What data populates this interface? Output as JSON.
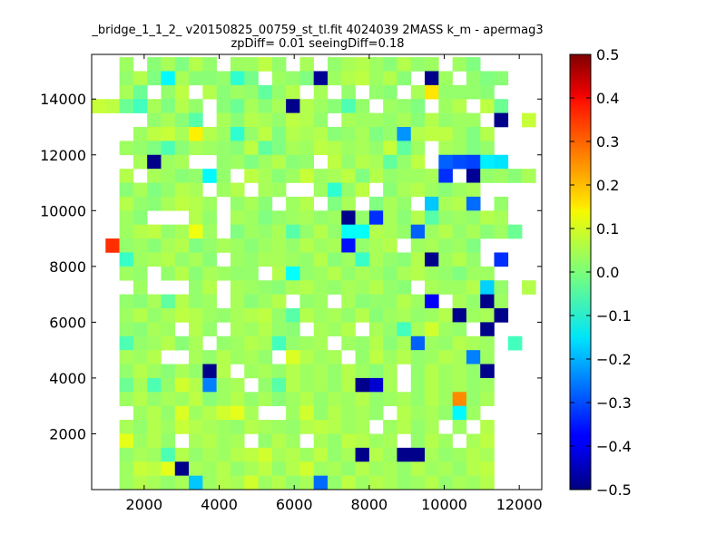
{
  "chart_data": {
    "type": "heatmap",
    "title_line1": "_bridge_1_1_2_ v20150825_00759_st_tl.fit 4024039 2MASS k_m - apermag3",
    "title_line2": "zpDiff= 0.01 seeingDiff=0.18",
    "xlim": [
      600,
      12600
    ],
    "ylim": [
      0,
      15600
    ],
    "x_ticks": [
      2000,
      4000,
      6000,
      8000,
      10000,
      12000
    ],
    "y_ticks": [
      2000,
      4000,
      6000,
      8000,
      10000,
      12000,
      14000
    ],
    "x_tick_labels": [
      "2000",
      "4000",
      "6000",
      "8000",
      "10000",
      "12000"
    ],
    "y_tick_labels": [
      "2000",
      "4000",
      "6000",
      "8000",
      "10000",
      "12000",
      "14000"
    ],
    "colorbar": {
      "vmin": -0.5,
      "vmax": 0.5,
      "colormap": "jet",
      "ticks": [
        0.5,
        0.4,
        0.3,
        0.2,
        0.1,
        0.0,
        -0.1,
        -0.2,
        -0.3,
        -0.4,
        -0.5
      ],
      "tick_labels": [
        "0.5",
        "0.4",
        "0.3",
        "0.2",
        "0.1",
        "0.0",
        "−0.1",
        "−0.2",
        "−0.3",
        "−0.4",
        "−0.5"
      ]
    },
    "grid": {
      "x0": 600,
      "dx": 370,
      "y0": 0,
      "dy": 500,
      "cols": 32,
      "rows": 31,
      "rows_top_to_bottom": [
        ". . 0.03 . 0.01 0.04 0 0.05 0.02 . 0.03 0.03 0.06 0.02 . 0.04 . 0.02 0.04 0.05 0.03 0.01 0.05 0.02 0.03 . 0.03 0 . . . .",
        ". . 0.02 0.05 0 -0.13 0.04 0.01 0.01 0.02 -0.08 -0.01 . 0.03 0.02 0 -0.48 0.03 0.05 0.06 0.03 0.05 0.01 . -0.49 0.03 . 0.02 0 0.01 . .",
        ". . 0.04 -0.02 . 0.02 0.06 . 0.05 0.01 0.03 0.02 -0.03 0.02 0.05 . 0.04 . 0.02 . 0.02 0.01 . 0.04 0.15 0.02 0.02 0.02 0.01 . . .",
        "0.07 0.06 -0.02 -0.06 0.04 0 0.05 0.02 . 0.01 -0.02 0.04 0.01 0.04 -0.49 0.05 0.03 0.01 -0.05 0.02 . 0.03 0.02 0 . 0.03 0.05 . 0.06 -0.02 . .",
        ". . . . 0.02 0.04 0.01 -0.04 . 0.04 0.01 0.05 0.04 0.02 0.06 0.05 0.02 . 0.04 0.03 0.03 0.02 0.04 0.01 0.05 0.02 0.03 0.03 . -0.49 . 0.07",
        ". . . 0.03 0.06 0.07 0.04 0.14 0.05 0.03 -0.08 0.02 0.06 0 0.05 0.04 0.05 0.01 0.02 0.04 0 0.02 -0.23 0.05 0.06 0.06 0.03 0 0.05 . . .",
        ". . 0.03 0.02 0 -0.05 0.01 0.04 0.03 0.02 0.01 0.06 -0.03 0 0.04 0.03 0.06 0.05 0.03 0.04 0.02 0.07 -0.03 0.03 . 0.04 0.03 0 0.02 . . .",
        ". . . 0.04 -0.49 0.03 0.04 . . 0.02 0.03 0 0.03 0.05 0.01 0.02 . 0.06 0.02 0.05 0.04 -0.03 0.02 0.06 . -0.28 -0.3 -0.31 -0.14 -0.15 . .",
        ". . 0.05 . 0.04 0.03 0.01 0.02 -0.13 0.02 . 0.06 0.04 0.01 0.03 0.07 0.03 0.04 0.06 0 0.05 0.02 0.03 0.03 0.04 -0.33 . -0.48 0.02 0.03 0.01 0.04",
        ". . 0.01 0.04 0 0.02 0.05 0.04 . 0.03 0.05 . 0.04 0.03 . . 0.03 -0.08 0.02 0.06 . 0.01 0.04 0.05 0.03 0.01 0.03 0.04 . . . .",
        ". . 0.05 0.02 0.01 0.04 0.06 0.05 0.03 . 0.02 0.04 0.01 . 0.03 0.05 . 0 0.04 . 0 0.04 0.02 . -0.18 0.04 0.05 -0.27 . 0.02 . .",
        ". . 0.03 0.01 . . . 0.05 0.02 . 0.04 0.03 0 0.02 0.03 0.04 0.02 0.03 -0.49 0.02 -0.33 0.04 0.01 0.05 -0.04 0.02 0.03 0.02 0.05 0.04 . .",
        ". . 0.03 0.05 0.06 0.02 0.04 0.11 0.03 . 0 0.03 0.02 0.04 -0.04 0.02 0.05 0.02 -0.12 -0.12 0.05 0.04 0.02 -0.28 0.03 0.05 0.02 0.04 0.01 0.03 -0.02 .",
        ". 0.33 0.02 0.03 0.01 0.04 0.05 0 0.02 0.04 0.03 0.01 0.03 0.04 0.02 0.05 0.03 0.04 -0.36 0.02 0.04 0.05 . 0.03 0.04 0.02 0.03 0 . . . .",
        ". . -0.07 0.03 0.04 0.05 0.02 0.04 0.01 . 0.03 0.02 0.04 0.04 0.03 0.02 0.05 0.01 0.03 -0.07 0.04 0.02 0.01 0.05 -0.49 0.03 0.05 0.02 . -0.33 . .",
        ". . 0.03 0.02 . 0.02 0.05 0.01 0.04 0.03 0.02 0.02 . 0.05 -0.12 0.02 0.03 0.05 0.02 0.04 0.03 0.01 0.04 0.05 0.03 0.02 0 0.03 0.03 . . .",
        ". . . 0.03 . . . 0.02 0.05 . 0.04 0.03 0.02 0.01 0.04 0.05 0.03 0.02 0.04 0.03 0.05 0.02 0.01 . 0.04 0.03 0.03 0.05 -0.17 0.02 . 0.05",
        ". . 0.02 0.01 0.04 -0.03 0.05 0.02 0.03 . 0.04 0.01 0.03 0.05 . 0.02 0.03 . 0.04 0.01 0.02 0.02 0.05 0.03 -0.38 . 0.04 0.02 -0.49 0.03 . .",
        ". . 0.03 0.05 0.02 0.04 0.06 0.05 0.03 0.02 0.04 0.05 0.06 0.02 -0.04 0.05 0.03 0.04 0.02 0.05 0.01 0.03 0.04 0.02 0.03 0.05 -0.49 0.03 0.04 -0.49 . .",
        ". . 0.02 0.01 0.04 0.03 . 0.05 0.02 . 0.04 0.03 0.05 0.02 0.01 . 0.04 0.03 0.05 . 0.04 0.02 -0.06 0.04 0.08 0.03 0.02 . -0.49 . . .",
        ". . -0.05 0.02 0.03 0.05 0.01 0.04 . 0.02 0.03 0.05 0.04 -0.06 0.02 0.03 0.04 . 0.03 0.02 0.05 0.01 0.04 -0.28 0.03 0.02 0.05 0.04 0.03 . -0.06 .",
        ". . 0.04 0.03 0.05 . . 0.04 0.02 0.05 0.03 0.04 0.02 . 0.09 0.05 0.03 0.04 . 0.02 0.06 0.03 0.05 0.02 0.03 0.05 0.04 -0.25 0.03 . . .",
        ". . 0.02 0.05 0.03 0.01 0.04 0.02 -0.49 0.05 . 0.03 0.04 0.02 0.05 0.03 0.04 0.02 0.05 0.03 0.01 0.04 . 0.02 0.05 0.03 0.04 0.02 -0.49 . . .",
        ". . -0.02 0.04 -0.05 0.02 0.08 0.05 -0.25 0.03 0.04 . 0.02 -0.04 0.05 0.03 0.04 0.02 0.05 -0.49 -0.42 0.04 . 0.02 0.05 0.03 0.04 0.02 0.03 . . .",
        ". . 0.03 0.05 0.02 0.04 0.03 0.06 0.01 0.03 0.05 0.02 0.04 0.01 0.03 0.05 0.02 0.04 0.03 0.05 0.02 0.03 0.04 0.02 0.05 0.03 0.24 0.02 0.04 . . .",
        ". . . 0.03 0.05 0.02 0.09 0.03 0.05 0.08 0.1 0.04 . . 0.03 0.08 0.02 0.05 0.03 0.04 0.02 . 0.05 0.03 0.04 0.02 -0.13 0.03 . . . .",
        ". . 0.04 0.02 0.05 0.03 0.07 0.05 0.04 0.03 0.02 0.05 0.04 0.03 0.02 0.05 0.06 0.05 0.03 0.04 . 0.03 0.05 0.02 0.04 . 0.03 . 0.05 . . .",
        ". . 0.1 0.03 0.05 0.02 . 0.04 0.05 0.03 0.04 . 0.02 0.05 0.03 . 0.04 0.02 0.06 0.05 0.03 0.04 . 0.02 0.05 0.03 . 0.04 0.06 . . .",
        ". . 0.02 0.04 0.03 -0.05 0.05 0.02 0.04 0.03 0.05 0.06 0.08 0.04 0.05 0.03 0.06 0.02 0.04 -0.49 0.05 0.03 -0.49 -0.49 0.04 0.02 0.03 0.05 0.04 . . .",
        ". . 0.03 0.07 0.06 0.1 -0.49 0.04 0.03 0.05 0.02 0.04 0.06 0.02 0.05 0.08 0.03 0.04 0.02 0.05 0.03 0.04 0.02 0.05 0.03 0.04 0.02 0.05 0.06 . . .",
        ". . 0.03 0.05 0.04 0.02 0.04 -0.18 0.03 0.05 0.04 0.08 0.03 0.05 0.02 0.04 -0.27 0.02 0.06 0.03 0.05 0.04 0.02 0.03 0.05 0.02 0.04 0.03 0.05 . . ."
      ]
    }
  }
}
